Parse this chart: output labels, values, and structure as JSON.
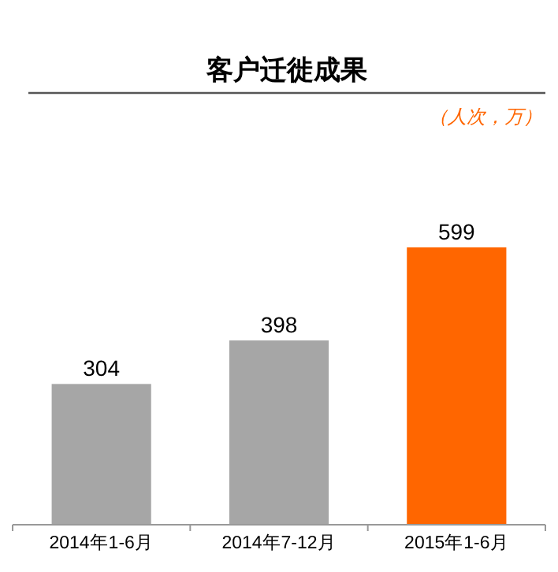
{
  "chart_data": {
    "type": "bar",
    "title": "客户迁徙成果",
    "subtitle": "（人次，万）",
    "categories": [
      "2014年1-6月",
      "2014年7-12月",
      "2015年1-6月"
    ],
    "values": [
      304,
      398,
      599
    ],
    "colors": [
      "#a6a6a6",
      "#a6a6a6",
      "#ff6600"
    ],
    "data_labels": true
  }
}
